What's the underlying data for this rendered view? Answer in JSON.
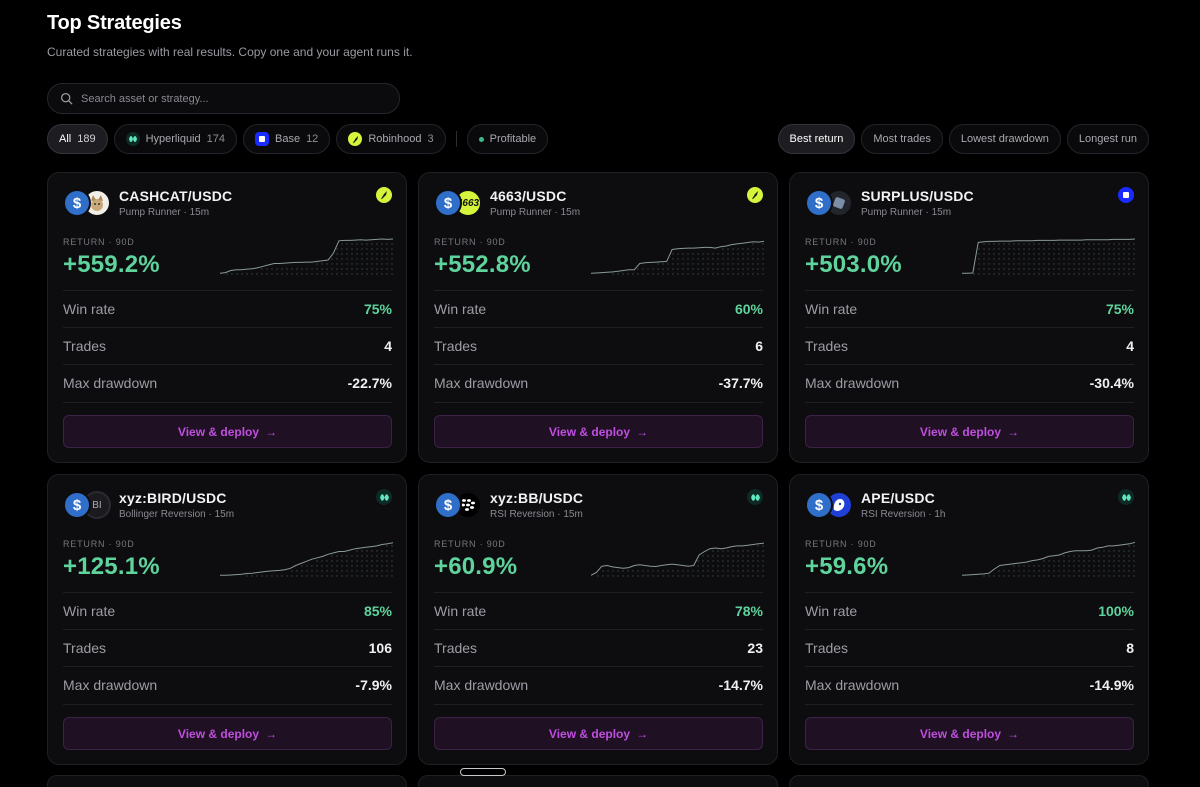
{
  "header": {
    "title": "Top Strategies",
    "subtitle": "Curated strategies with real results. Copy one and your agent runs it."
  },
  "search": {
    "placeholder": "Search asset or strategy..."
  },
  "filters": [
    {
      "label": "All",
      "count": "189",
      "active": true,
      "icon": "none"
    },
    {
      "label": "Hyperliquid",
      "count": "174",
      "active": false,
      "icon": "hyperliquid-icon"
    },
    {
      "label": "Base",
      "count": "12",
      "active": false,
      "icon": "base-icon"
    },
    {
      "label": "Robinhood",
      "count": "3",
      "active": false,
      "icon": "robinhood-icon"
    },
    {
      "label": "Profitable",
      "count": "",
      "active": false,
      "icon": "profitable-dot"
    }
  ],
  "sorts": [
    {
      "label": "Best return",
      "active": true
    },
    {
      "label": "Most trades",
      "active": false
    },
    {
      "label": "Lowest drawdown",
      "active": false
    },
    {
      "label": "Longest run",
      "active": false
    }
  ],
  "labels": {
    "return": "RETURN · 90D",
    "win_rate": "Win rate",
    "trades": "Trades",
    "max_drawdown": "Max drawdown",
    "deploy": "View & deploy"
  },
  "colors": {
    "accent_green": "#5fd39c",
    "deploy_purple": "#c04fe0",
    "robinhood": "#d4f53c",
    "base": "#1a2bff",
    "hyperliquid": "#5fe8c0"
  },
  "cards": [
    {
      "pair": "CASHCAT/USDC",
      "strategy": "Pump Runner · 15m",
      "chain": "robinhood",
      "return": "+559.2%",
      "win_rate": "75%",
      "trades": "4",
      "max_drawdown": "-22.7%",
      "token_avatar": "cat",
      "token_text": "",
      "curve": [
        0.02,
        0.04,
        0.1,
        0.12,
        0.12,
        0.14,
        0.15,
        0.18,
        0.22,
        0.26,
        0.3,
        0.3,
        0.31,
        0.32,
        0.33,
        0.33,
        0.34,
        0.34,
        0.36,
        0.38,
        0.4,
        0.6,
        0.95,
        0.96,
        0.96,
        0.97,
        0.98,
        0.97,
        0.98,
        0.99,
        1.0,
        0.99,
        1.0
      ]
    },
    {
      "pair": "4663/USDC",
      "strategy": "Pump Runner · 15m",
      "chain": "robinhood",
      "return": "+552.8%",
      "win_rate": "60%",
      "trades": "6",
      "max_drawdown": "-37.7%",
      "token_avatar": "yellow-text",
      "token_text": "4663",
      "curve": [
        0.02,
        0.03,
        0.04,
        0.05,
        0.06,
        0.08,
        0.1,
        0.12,
        0.12,
        0.3,
        0.32,
        0.33,
        0.34,
        0.35,
        0.36,
        0.7,
        0.72,
        0.73,
        0.74,
        0.74,
        0.75,
        0.76,
        0.76,
        0.74,
        0.78,
        0.8,
        0.84,
        0.86,
        0.88,
        0.9,
        0.92,
        0.91,
        0.93
      ]
    },
    {
      "pair": "SURPLUS/USDC",
      "strategy": "Pump Runner · 15m",
      "chain": "base",
      "return": "+503.0%",
      "win_rate": "75%",
      "trades": "4",
      "max_drawdown": "-30.4%",
      "token_avatar": "dark-cube",
      "token_text": "",
      "curve": [
        0.02,
        0.02,
        0.03,
        0.9,
        0.92,
        0.93,
        0.93,
        0.94,
        0.94,
        0.94,
        0.95,
        0.95,
        0.95,
        0.95,
        0.96,
        0.96,
        0.96,
        0.96,
        0.97,
        0.97,
        0.97,
        0.97,
        0.97,
        0.98,
        0.98,
        0.98,
        0.98,
        0.98,
        0.99,
        0.99,
        0.99,
        0.99,
        1.0
      ]
    },
    {
      "pair": "xyz:BIRD/USDC",
      "strategy": "Bollinger Reversion · 15m",
      "chain": "hyperliquid",
      "return": "+125.1%",
      "win_rate": "85%",
      "trades": "106",
      "max_drawdown": "-7.9%",
      "token_avatar": "bi",
      "token_text": "BI",
      "curve": [
        0.02,
        0.02,
        0.03,
        0.04,
        0.05,
        0.07,
        0.08,
        0.1,
        0.12,
        0.14,
        0.15,
        0.16,
        0.18,
        0.22,
        0.3,
        0.36,
        0.42,
        0.48,
        0.52,
        0.56,
        0.62,
        0.66,
        0.7,
        0.7,
        0.74,
        0.78,
        0.8,
        0.82,
        0.84,
        0.86,
        0.9,
        0.92,
        0.95
      ]
    },
    {
      "pair": "xyz:BB/USDC",
      "strategy": "RSI Reversion · 15m",
      "chain": "hyperliquid",
      "return": "+60.9%",
      "win_rate": "78%",
      "trades": "23",
      "max_drawdown": "-14.7%",
      "token_avatar": "blackberry",
      "token_text": "",
      "curve": [
        0.02,
        0.1,
        0.28,
        0.3,
        0.26,
        0.24,
        0.22,
        0.24,
        0.3,
        0.32,
        0.3,
        0.28,
        0.27,
        0.3,
        0.32,
        0.34,
        0.32,
        0.3,
        0.28,
        0.3,
        0.6,
        0.7,
        0.78,
        0.8,
        0.78,
        0.8,
        0.84,
        0.86,
        0.86,
        0.88,
        0.9,
        0.92,
        0.94
      ]
    },
    {
      "pair": "APE/USDC",
      "strategy": "RSI Reversion · 1h",
      "chain": "hyperliquid",
      "return": "+59.6%",
      "win_rate": "100%",
      "trades": "8",
      "max_drawdown": "-14.9%",
      "token_avatar": "ape",
      "token_text": "",
      "curve": [
        0.02,
        0.03,
        0.04,
        0.05,
        0.06,
        0.08,
        0.2,
        0.3,
        0.32,
        0.34,
        0.36,
        0.38,
        0.4,
        0.44,
        0.46,
        0.5,
        0.56,
        0.58,
        0.6,
        0.66,
        0.7,
        0.72,
        0.72,
        0.72,
        0.74,
        0.8,
        0.82,
        0.86,
        0.86,
        0.88,
        0.9,
        0.92,
        0.96
      ]
    }
  ]
}
